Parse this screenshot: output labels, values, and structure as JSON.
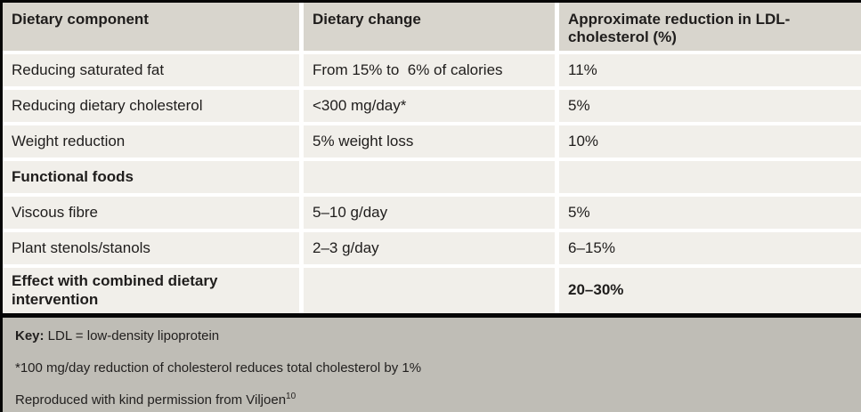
{
  "table": {
    "columns": [
      "Dietary component",
      "Dietary change",
      "Approximate reduction in LDL-cholesterol (%)"
    ],
    "rows": [
      {
        "component": "Reducing saturated fat",
        "change": "From 15% to  6% of calories",
        "reduction": "11%"
      },
      {
        "component": "Reducing dietary cholesterol",
        "change": "<300 mg/day*",
        "reduction": "5%"
      },
      {
        "component": "Weight reduction",
        "change": "5% weight loss",
        "reduction": "10%"
      },
      {
        "component": "Functional foods",
        "change": "",
        "reduction": ""
      },
      {
        "component": "Viscous fibre",
        "change": "5–10 g/day",
        "reduction": "5%"
      },
      {
        "component": "Plant stenols/stanols",
        "change": "2–3 g/day",
        "reduction": "6–15%"
      },
      {
        "component": "Effect with combined dietary intervention",
        "change": "",
        "reduction": "20–30%"
      }
    ]
  },
  "footer": {
    "key_label": "Key:",
    "key_text": " LDL = low-density lipoprotein",
    "footnote": "*100 mg/day reduction of cholesterol reduces total cholesterol by 1%",
    "attribution": "Reproduced with kind permission from Viljoen",
    "attribution_ref": "10"
  },
  "colors": {
    "header_bg": "#d8d5cd",
    "row_bg": "#f1efea",
    "footer_bg": "#bfbdb6",
    "divider": "#050505",
    "text": "#1f1d1c"
  }
}
